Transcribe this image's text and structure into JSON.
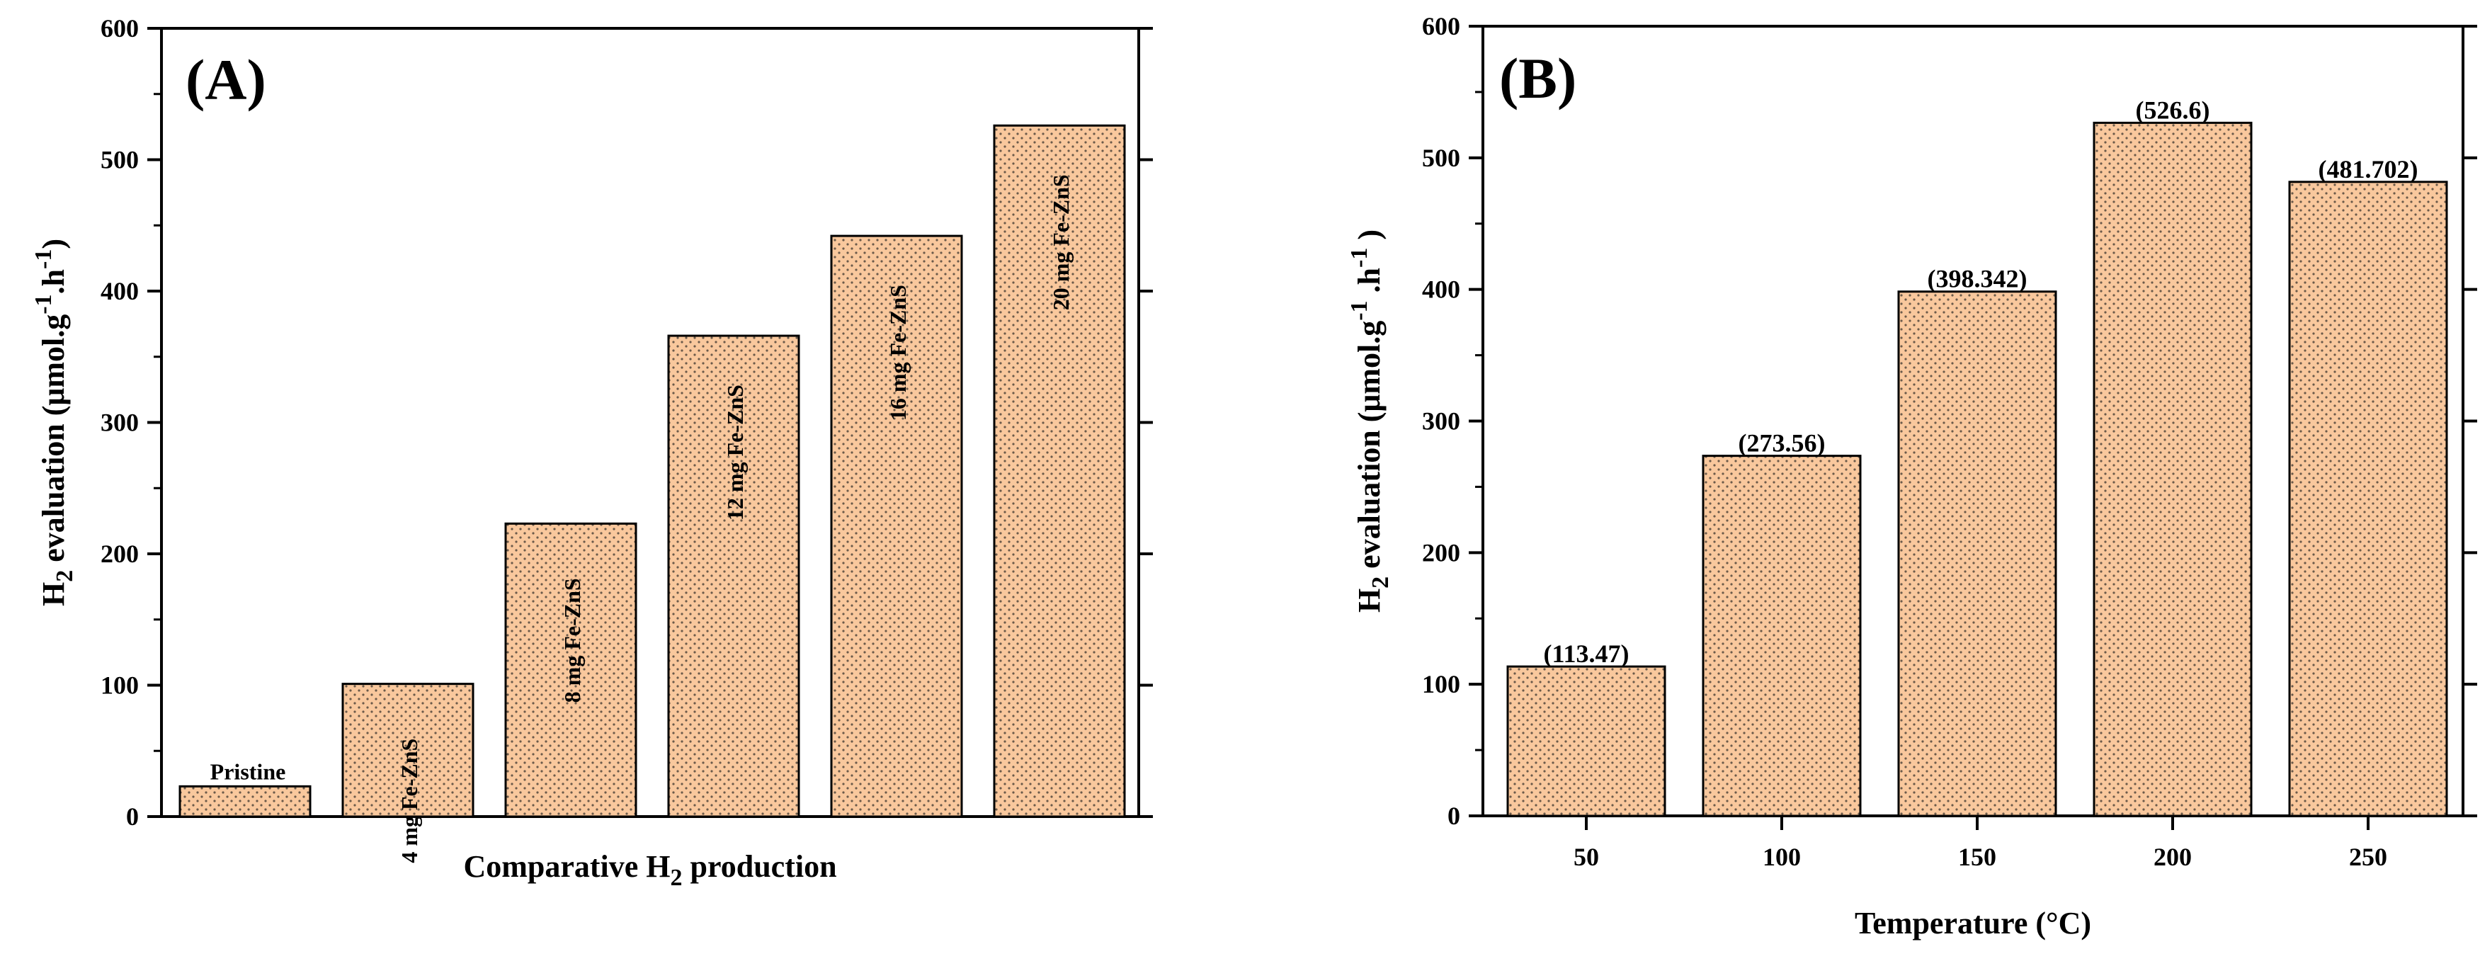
{
  "chart_data": [
    {
      "type": "bar",
      "panel_label": "(A)",
      "categories": [
        "Pristine",
        "4 mg Fe-ZnS",
        "8 mg Fe-ZnS",
        "12 mg Fe-ZnS",
        "16 mg Fe-ZnS",
        "20 mg Fe-ZnS"
      ],
      "values": [
        23,
        101,
        223,
        366,
        442,
        526
      ],
      "bar_labels_rotated": [
        false,
        true,
        true,
        true,
        true,
        true
      ],
      "xlabel": {
        "main": "Comparative H",
        "sub": "2",
        "rest": " production"
      },
      "ylabel": {
        "main": "H",
        "sub": "2",
        "rest": " evaluation (μmol.g",
        "sup1": "-1",
        "mid": ".h",
        "sup2": "-1",
        "end": ")"
      },
      "ylim": [
        0,
        600
      ],
      "yticks": [
        0,
        100,
        200,
        300,
        400,
        500,
        600
      ],
      "bar_fill": "#F9C89D",
      "bar_stroke": "#000000"
    },
    {
      "type": "bar",
      "panel_label": "(B)",
      "categories": [
        "50",
        "100",
        "150",
        "200",
        "250"
      ],
      "values": [
        113.47,
        273.56,
        398.342,
        526.6,
        481.702
      ],
      "value_labels": [
        "(113.47)",
        "(273.56)",
        "(398.342)",
        "(526.6)",
        "(481.702)"
      ],
      "xlabel": {
        "main": "Temperature (°C)"
      },
      "ylabel": {
        "main": "H",
        "sub": "2",
        "rest": " evaluation (μmol.g",
        "sup1": "-1",
        "mid": " .h",
        "sup2": "-1",
        "end": " )"
      },
      "ylim": [
        0,
        600
      ],
      "yticks": [
        0,
        100,
        200,
        300,
        400,
        500,
        600
      ],
      "bar_fill": "#F9C89D",
      "bar_stroke": "#000000"
    }
  ]
}
